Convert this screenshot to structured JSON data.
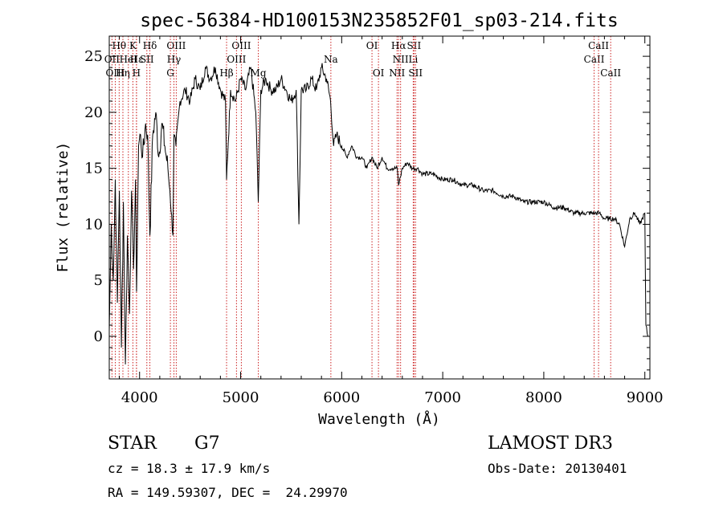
{
  "chart_data": {
    "type": "line",
    "title": "spec-56384-HD100153N235852F01_sp03-214.fits",
    "xlabel": "Wavelength (Å)",
    "ylabel": "Flux (relative)",
    "xlim": [
      3700,
      9050
    ],
    "ylim": [
      -3.8,
      26.8
    ],
    "xticks": [
      4000,
      5000,
      6000,
      7000,
      8000,
      9000
    ],
    "xtick_labels": [
      "4000",
      "5000",
      "6000",
      "7000",
      "8000",
      "9000"
    ],
    "yticks": [
      0,
      5,
      10,
      15,
      20,
      25
    ],
    "ytick_labels": [
      "0",
      "5",
      "10",
      "15",
      "20",
      "25"
    ],
    "grid": false,
    "series": [
      {
        "x": [
          3700,
          3720,
          3740,
          3760,
          3780,
          3800,
          3820,
          3840,
          3860,
          3880,
          3900,
          3920,
          3940,
          3960,
          3970,
          3990,
          4010,
          4030,
          4060,
          4080,
          4102,
          4130,
          4160,
          4190,
          4220,
          4250,
          4280,
          4300,
          4330,
          4340,
          4360,
          4400,
          4450,
          4500,
          4550,
          4600,
          4650,
          4700,
          4750,
          4800,
          4850,
          4861,
          4900,
          4950,
          5000,
          5050,
          5100,
          5150,
          5175,
          5200,
          5250,
          5300,
          5350,
          5400,
          5450,
          5500,
          5550,
          5577,
          5600,
          5650,
          5700,
          5750,
          5800,
          5850,
          5890,
          5920,
          5950,
          6000,
          6050,
          6100,
          6150,
          6200,
          6250,
          6300,
          6350,
          6400,
          6450,
          6500,
          6550,
          6563,
          6600,
          6650,
          6700,
          6750,
          6800,
          6900,
          7000,
          7100,
          7200,
          7300,
          7400,
          7500,
          7600,
          7700,
          7800,
          7900,
          8000,
          8100,
          8200,
          8300,
          8400,
          8500,
          8550,
          8600,
          8650,
          8700,
          8750,
          8800,
          8850,
          8900,
          8950,
          9000,
          9010,
          9030
        ],
        "values": [
          0.5,
          10,
          5,
          14,
          3,
          13,
          -1,
          12,
          -2.5,
          9,
          2,
          13,
          6,
          14,
          4,
          17,
          18,
          16,
          19,
          18,
          9,
          18,
          20,
          16,
          19,
          17,
          15,
          13,
          9,
          18,
          17,
          21,
          22,
          21,
          23,
          22,
          24,
          23,
          24,
          22,
          21,
          14,
          22,
          21,
          23,
          22,
          24,
          20,
          12,
          22,
          23,
          22,
          22,
          23,
          22,
          21,
          22,
          10,
          22,
          22,
          23,
          22,
          24,
          23,
          21,
          17,
          18,
          17,
          16,
          17,
          16,
          16,
          15,
          16,
          15,
          16,
          15,
          15,
          15,
          13.5,
          15,
          15.5,
          15,
          15,
          14.5,
          14.5,
          14,
          14,
          13.5,
          13.5,
          13,
          13,
          12.5,
          12.5,
          12,
          12,
          12,
          11.5,
          11.5,
          11,
          11,
          11,
          11,
          10.5,
          10.5,
          10.5,
          10,
          8,
          10.5,
          11,
          10,
          11,
          1,
          0
        ]
      }
    ],
    "lines": [
      {
        "label": "Hθ",
        "x": 3798,
        "row": 0
      },
      {
        "label": "OII",
        "x": 3727,
        "row": 1
      },
      {
        "label": "OIII",
        "x": 3760,
        "row": 2
      },
      {
        "label": "Hη",
        "x": 3835,
        "row": 2
      },
      {
        "label": "HeI",
        "x": 3889,
        "row": 1
      },
      {
        "label": "K",
        "x": 3934,
        "row": 0
      },
      {
        "label": "H",
        "x": 3969,
        "row": 2
      },
      {
        "label": "Hε",
        "x": 3970,
        "row": 1
      },
      {
        "label": "SII",
        "x": 4072,
        "row": 1
      },
      {
        "label": "Hδ",
        "x": 4102,
        "row": 0
      },
      {
        "label": "OIII",
        "x": 4363,
        "row": 0
      },
      {
        "label": "Hγ",
        "x": 4340,
        "row": 1
      },
      {
        "label": "G",
        "x": 4305,
        "row": 2
      },
      {
        "label": "Hβ",
        "x": 4861,
        "row": 2
      },
      {
        "label": "OIII",
        "x": 4959,
        "row": 1
      },
      {
        "label": "OIII",
        "x": 5007,
        "row": 0
      },
      {
        "label": "Mg",
        "x": 5175,
        "row": 2
      },
      {
        "label": "Na",
        "x": 5893,
        "row": 1
      },
      {
        "label": "OI",
        "x": 6300,
        "row": 0
      },
      {
        "label": "OI",
        "x": 6364,
        "row": 2
      },
      {
        "label": "NII",
        "x": 6548,
        "row": 2
      },
      {
        "label": "Hα",
        "x": 6563,
        "row": 0
      },
      {
        "label": "NII",
        "x": 6583,
        "row": 1
      },
      {
        "label": "SII",
        "x": 6716,
        "row": 0
      },
      {
        "label": "Li",
        "x": 6708,
        "row": 1
      },
      {
        "label": "SII",
        "x": 6731,
        "row": 2
      },
      {
        "label": "CaII",
        "x": 8498,
        "row": 1
      },
      {
        "label": "CaII",
        "x": 8542,
        "row": 0
      },
      {
        "label": "CaII",
        "x": 8662,
        "row": 2
      }
    ]
  },
  "info": {
    "class_label": "STAR",
    "subclass": "G7",
    "survey": "LAMOST DR3",
    "cz": "cz = 18.3 ± 17.9 km/s",
    "obs_date": "Obs-Date: 20130401",
    "coords": "RA = 149.59307, DEC =  24.29970"
  },
  "colors": {
    "spectrum": "#000000",
    "line_marker": "#cc2222",
    "axes": "#000000"
  }
}
